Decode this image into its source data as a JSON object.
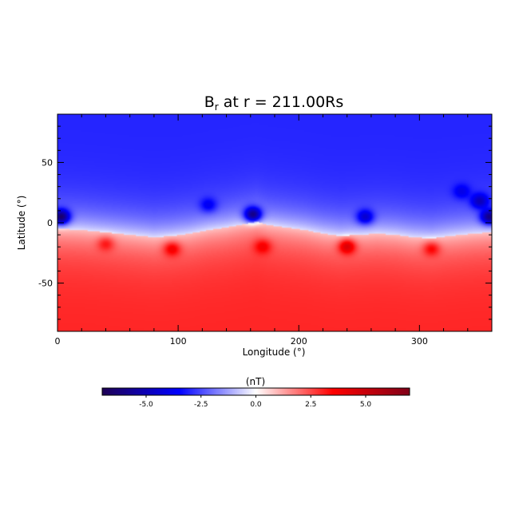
{
  "chart_data": {
    "type": "heatmap",
    "title": {
      "prefix": "B",
      "subscript": "r",
      "suffix": " at r = 211.00Rs"
    },
    "xlabel": "Longitude (°)",
    "ylabel": "Latitude (°)",
    "xlim": [
      0,
      360
    ],
    "ylim": [
      -90,
      90
    ],
    "xticks": [
      0,
      100,
      200,
      300
    ],
    "yticks": [
      -50,
      0,
      50
    ],
    "grid": false,
    "variable": "Br",
    "neutral_line": [
      [
        0,
        -5
      ],
      [
        20,
        -6
      ],
      [
        40,
        -8
      ],
      [
        60,
        -10
      ],
      [
        80,
        -12
      ],
      [
        95,
        -11
      ],
      [
        110,
        -9
      ],
      [
        125,
        -6
      ],
      [
        140,
        -4
      ],
      [
        155,
        -1
      ],
      [
        165,
        1
      ],
      [
        175,
        -2
      ],
      [
        190,
        -4
      ],
      [
        205,
        -6
      ],
      [
        220,
        -9
      ],
      [
        235,
        -11
      ],
      [
        250,
        -10
      ],
      [
        265,
        -9
      ],
      [
        280,
        -10
      ],
      [
        295,
        -12
      ],
      [
        310,
        -13
      ],
      [
        325,
        -11
      ],
      [
        345,
        -9
      ],
      [
        360,
        -8
      ]
    ],
    "features": [
      {
        "lon": 3,
        "lat": 5,
        "value": -6.5
      },
      {
        "lon": 358,
        "lat": 5,
        "value": -6.0
      },
      {
        "lon": 162,
        "lat": 7,
        "value": -6.0
      },
      {
        "lon": 125,
        "lat": 15,
        "value": -3.8
      },
      {
        "lon": 255,
        "lat": 5,
        "value": -4.5
      },
      {
        "lon": 335,
        "lat": 26,
        "value": -4.0
      },
      {
        "lon": 350,
        "lat": 18,
        "value": -5.0
      },
      {
        "lon": 240,
        "lat": -20,
        "value": 4.5
      },
      {
        "lon": 95,
        "lat": -22,
        "value": 3.8
      },
      {
        "lon": 40,
        "lat": -18,
        "value": 3.2
      },
      {
        "lon": 170,
        "lat": -20,
        "value": 3.8
      },
      {
        "lon": 310,
        "lat": -22,
        "value": 3.5
      }
    ],
    "background": {
      "north": -3.0,
      "south": 3.0
    },
    "colorbar": {
      "label": "(nT)",
      "range": [
        -7,
        7
      ],
      "ticks": [
        -5.0,
        -2.5,
        0.0,
        2.5,
        5.0
      ],
      "tick_labels": [
        "-5.0",
        "-2.5",
        "0.0",
        "2.5",
        "5.0"
      ],
      "colormap": [
        "#1e0055",
        "#0000ff",
        "#ffffff",
        "#ff0000",
        "#800018"
      ]
    }
  }
}
